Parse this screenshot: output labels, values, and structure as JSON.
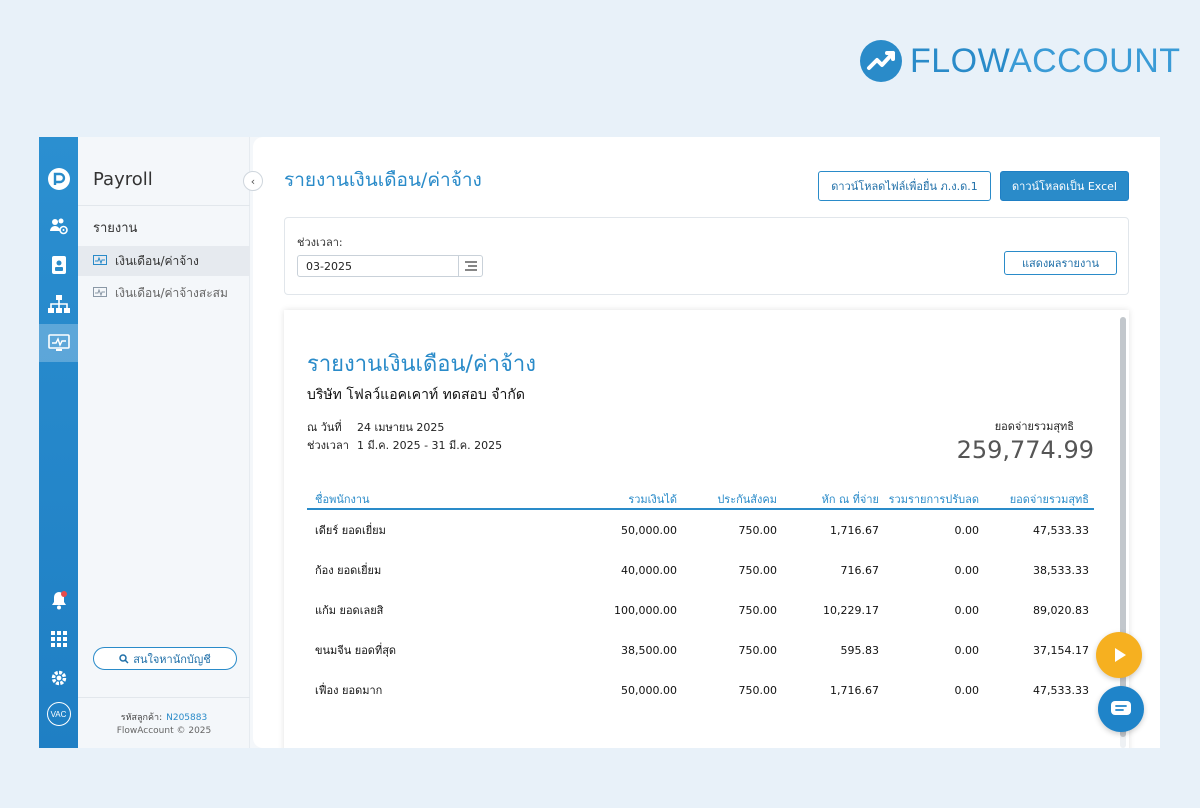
{
  "brand": {
    "name_part1": "FLOW",
    "name_part2": "ACCOUNT"
  },
  "rail": {
    "icons": [
      "flowpayroll-logo-icon",
      "people-settings-icon",
      "id-card-icon",
      "org-chart-icon",
      "report-monitor-icon",
      "bell-icon",
      "apps-grid-icon",
      "gear-icon",
      "user-avatar"
    ],
    "avatar_text": "VAC"
  },
  "sidebar": {
    "title": "Payroll",
    "section": "รายงาน",
    "items": [
      {
        "label": "เงินเดือน/ค่าจ้าง",
        "active": true
      },
      {
        "label": "เงินเดือน/ค่าจ้างสะสม",
        "active": false
      }
    ],
    "interest_button": "สนใจหานักบัญชี",
    "customer_label": "รหัสลูกค้า:",
    "customer_code": "N205883",
    "copyright": "FlowAccount © 2025"
  },
  "header": {
    "title": "รายงานเงินเดือน/ค่าจ้าง",
    "download_pnd_label": "ดาวน์โหลดไฟล์เพื่อยื่น ภ.ง.ด.1",
    "download_excel_label": "ดาวน์โหลดเป็น Excel"
  },
  "filter": {
    "period_label": "ช่วงเวลา:",
    "period_value": "03-2025",
    "show_report_label": "แสดงผลรายงาน"
  },
  "report": {
    "title": "รายงานเงินเดือน/ค่าจ้าง",
    "company": "บริษัท โฟลว์แอคเคาท์ ทดสอบ จำกัด",
    "as_of_label": "ณ วันที่",
    "as_of_value": "24 เมษายน 2025",
    "period_label": "ช่วงเวลา",
    "period_value": "1 มี.ค. 2025 - 31 มี.ค. 2025",
    "net_total_label": "ยอดจ่ายรวมสุทธิ",
    "net_total_value": "259,774.99",
    "columns": [
      "ชื่อพนักงาน",
      "รวมเงินได้",
      "ประกันสังคม",
      "หัก ณ ที่จ่าย",
      "รวมรายการปรับลด",
      "ยอดจ่ายรวมสุทธิ"
    ],
    "rows": [
      [
        "เดียร์ ยอดเยี่ยม",
        "50,000.00",
        "750.00",
        "1,716.67",
        "0.00",
        "47,533.33"
      ],
      [
        "ก้อง ยอดเยี่ยม",
        "40,000.00",
        "750.00",
        "716.67",
        "0.00",
        "38,533.33"
      ],
      [
        "แก้ม ยอดเลยสิ",
        "100,000.00",
        "750.00",
        "10,229.17",
        "0.00",
        "89,020.83"
      ],
      [
        "ขนมจีน ยอดที่สุด",
        "38,500.00",
        "750.00",
        "595.83",
        "0.00",
        "37,154.17"
      ],
      [
        "เฟื่อง ยอดมาก",
        "50,000.00",
        "750.00",
        "1,716.67",
        "0.00",
        "47,533.33"
      ]
    ]
  },
  "colors": {
    "accent": "#2a8bc9",
    "rail": "#2b8fd0",
    "play_fab": "#f6b020",
    "chat_fab": "#1f84c9"
  }
}
